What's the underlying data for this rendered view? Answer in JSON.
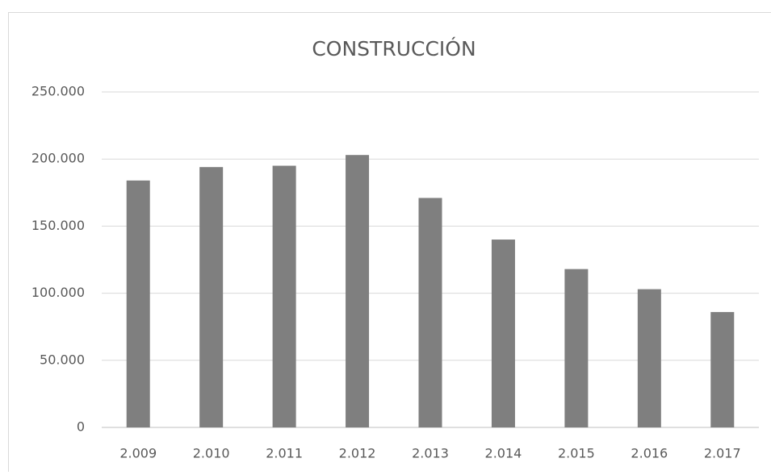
{
  "chart_data": {
    "type": "bar",
    "title": "CONSTRUCCIÓN",
    "categories": [
      "2.009",
      "2.010",
      "2.011",
      "2.012",
      "2.013",
      "2.014",
      "2.015",
      "2.016",
      "2.017"
    ],
    "values": [
      184000,
      194000,
      195000,
      203000,
      171000,
      140000,
      118000,
      103000,
      86000
    ],
    "color": "#7f7f7f",
    "ylim": [
      0,
      250000
    ],
    "yticks": [
      0,
      {
        "value": 50000,
        "label": "50.000"
      },
      {
        "value": 100000,
        "label": "100.000"
      },
      {
        "value": 150000,
        "label": "150.000"
      },
      {
        "value": 200000,
        "label": "200.000"
      },
      {
        "value": 250000,
        "label": "250.000"
      }
    ],
    "grid": true
  }
}
